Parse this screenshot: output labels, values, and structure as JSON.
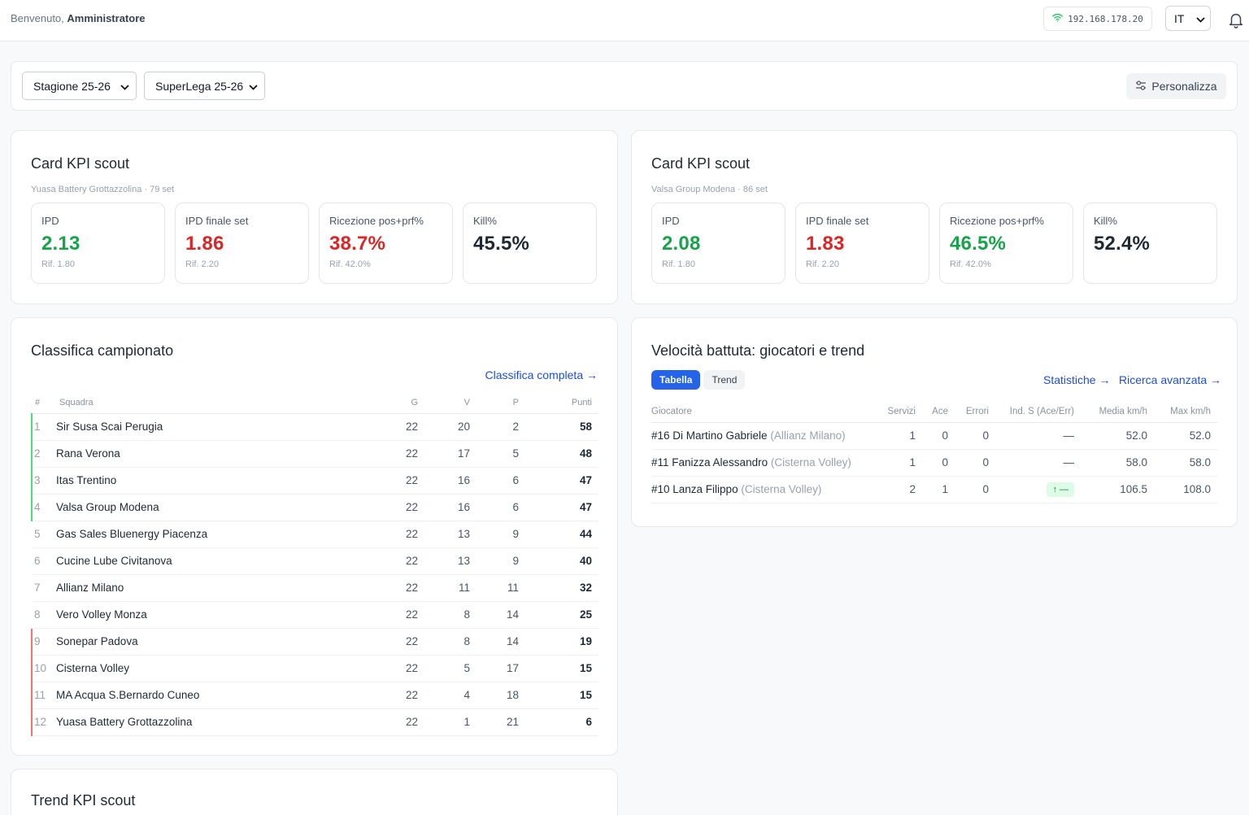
{
  "header": {
    "welcome_prefix": "Benvenuto,",
    "user_name": "Amministratore",
    "ip_address": "192.168.178.20",
    "language": "IT"
  },
  "filters": {
    "season": "Stagione 25-26",
    "league": "SuperLega 25-26",
    "customize_label": "Personalizza"
  },
  "kpi_cards": [
    {
      "title": "Card KPI scout",
      "subtitle": "Yuasa Battery Grottazzolina · 79 set",
      "kpis": [
        {
          "label": "IPD",
          "value": "2.13",
          "ref": "Rif. 1.80",
          "status": "good"
        },
        {
          "label": "IPD finale set",
          "value": "1.86",
          "ref": "Rif. 2.20",
          "status": "bad"
        },
        {
          "label": "Ricezione pos+prf%",
          "value": "38.7%",
          "ref": "Rif. 42.0%",
          "status": "bad"
        },
        {
          "label": "Kill%",
          "value": "45.5%",
          "ref": "",
          "status": "neutral"
        }
      ]
    },
    {
      "title": "Card KPI scout",
      "subtitle": "Valsa Group Modena · 86 set",
      "kpis": [
        {
          "label": "IPD",
          "value": "2.08",
          "ref": "Rif. 1.80",
          "status": "good"
        },
        {
          "label": "IPD finale set",
          "value": "1.83",
          "ref": "Rif. 2.20",
          "status": "bad"
        },
        {
          "label": "Ricezione pos+prf%",
          "value": "46.5%",
          "ref": "Rif. 42.0%",
          "status": "good"
        },
        {
          "label": "Kill%",
          "value": "52.4%",
          "ref": "",
          "status": "neutral"
        }
      ]
    }
  ],
  "standings": {
    "title": "Classifica campionato",
    "full_link": "Classifica completa →",
    "columns": [
      "#",
      "Squadra",
      "G",
      "V",
      "P",
      "Punti"
    ],
    "rows": [
      {
        "pos": "1",
        "team": "Sir Susa Scai Perugia",
        "g": "22",
        "v": "20",
        "p": "2",
        "pts": "58",
        "zone": "g"
      },
      {
        "pos": "2",
        "team": "Rana Verona",
        "g": "22",
        "v": "17",
        "p": "5",
        "pts": "48",
        "zone": "g"
      },
      {
        "pos": "3",
        "team": "Itas Trentino",
        "g": "22",
        "v": "16",
        "p": "6",
        "pts": "47",
        "zone": "g"
      },
      {
        "pos": "4",
        "team": "Valsa Group Modena",
        "g": "22",
        "v": "16",
        "p": "6",
        "pts": "47",
        "zone": "g"
      },
      {
        "pos": "5",
        "team": "Gas Sales Bluenergy Piacenza",
        "g": "22",
        "v": "13",
        "p": "9",
        "pts": "44",
        "zone": "n"
      },
      {
        "pos": "6",
        "team": "Cucine Lube Civitanova",
        "g": "22",
        "v": "13",
        "p": "9",
        "pts": "40",
        "zone": "n"
      },
      {
        "pos": "7",
        "team": "Allianz Milano",
        "g": "22",
        "v": "11",
        "p": "11",
        "pts": "32",
        "zone": "n"
      },
      {
        "pos": "8",
        "team": "Vero Volley Monza",
        "g": "22",
        "v": "8",
        "p": "14",
        "pts": "25",
        "zone": "n"
      },
      {
        "pos": "9",
        "team": "Sonepar Padova",
        "g": "22",
        "v": "8",
        "p": "14",
        "pts": "19",
        "zone": "r"
      },
      {
        "pos": "10",
        "team": "Cisterna Volley",
        "g": "22",
        "v": "5",
        "p": "17",
        "pts": "15",
        "zone": "r"
      },
      {
        "pos": "11",
        "team": "MA Acqua S.Bernardo Cuneo",
        "g": "22",
        "v": "4",
        "p": "18",
        "pts": "15",
        "zone": "r"
      },
      {
        "pos": "12",
        "team": "Yuasa Battery Grottazzolina",
        "g": "22",
        "v": "1",
        "p": "21",
        "pts": "6",
        "zone": "r"
      }
    ]
  },
  "serve_speed": {
    "title": "Velocità battuta: giocatori e trend",
    "tabs": [
      "Tabella",
      "Trend"
    ],
    "stats_link": "Statistiche →",
    "advanced_link": "Ricerca avanzata →",
    "columns": [
      "Giocatore",
      "Servizi",
      "Ace",
      "Errori",
      "Ind. S (Ace/Err)",
      "Media km/h",
      "Max km/h"
    ],
    "rows": [
      {
        "player": "#16 Di Martino Gabriele",
        "team": "(Allianz Milano)",
        "serves": "1",
        "ace": "0",
        "errors": "0",
        "index": "—",
        "index_trend": false,
        "avg": "52.0",
        "max": "52.0"
      },
      {
        "player": "#11 Fanizza Alessandro",
        "team": "(Cisterna Volley)",
        "serves": "1",
        "ace": "0",
        "errors": "0",
        "index": "—",
        "index_trend": false,
        "avg": "58.0",
        "max": "58.0"
      },
      {
        "player": "#10 Lanza Filippo",
        "team": "(Cisterna Volley)",
        "serves": "2",
        "ace": "1",
        "errors": "0",
        "index": "↑ —",
        "index_trend": true,
        "avg": "106.5",
        "max": "108.0"
      }
    ]
  },
  "trend_card": {
    "title": "Trend KPI scout"
  },
  "colors": {
    "good": "#16a34a",
    "bad": "#dc2626",
    "accent": "#2563eb",
    "zone_top": "#4ade80",
    "zone_bottom": "#f87171"
  },
  "icons": [
    "wifi-icon",
    "chevron-down-icon",
    "bell-icon",
    "sliders-icon"
  ]
}
